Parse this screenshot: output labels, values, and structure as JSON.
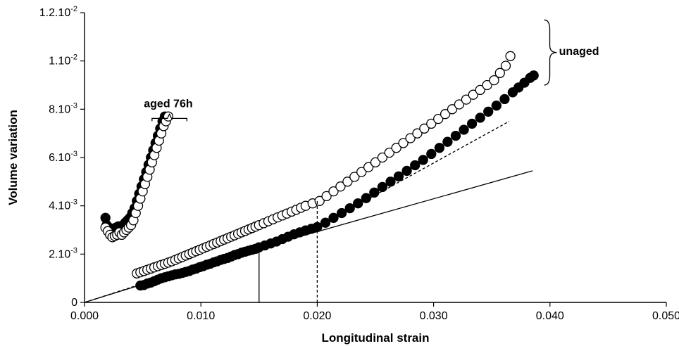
{
  "chart_data": {
    "type": "scatter",
    "xlabel": "Longitudinal strain",
    "ylabel": "Volume variation",
    "xlim": [
      0,
      0.05
    ],
    "ylim": [
      0,
      0.012
    ],
    "grid": false,
    "x_ticks": [
      {
        "value": 0.0,
        "label": "0.000"
      },
      {
        "value": 0.01,
        "label": "0.010"
      },
      {
        "value": 0.02,
        "label": "0.020"
      },
      {
        "value": 0.03,
        "label": "0.030"
      },
      {
        "value": 0.04,
        "label": "0.040"
      },
      {
        "value": 0.05,
        "label": "0.050"
      }
    ],
    "y_ticks": [
      {
        "value": 0,
        "base": "0",
        "exp": ""
      },
      {
        "value": 0.002,
        "base": "2.10",
        "exp": "-3"
      },
      {
        "value": 0.004,
        "base": "4.10",
        "exp": "-3"
      },
      {
        "value": 0.006,
        "base": "6.10",
        "exp": "-3"
      },
      {
        "value": 0.008,
        "base": "8.10",
        "exp": "-3"
      },
      {
        "value": 0.01,
        "base": "1.10",
        "exp": "-2"
      },
      {
        "value": 0.012,
        "base": "1.2.10",
        "exp": "-2"
      }
    ],
    "annotations": [
      {
        "text": "aged 76h",
        "x": 0.0072,
        "y": 0.00808
      },
      {
        "text": "unaged",
        "x": 0.0425,
        "y": 0.01025
      }
    ],
    "series": [
      {
        "marker": "filled-circle",
        "x": [
          0.0048,
          0.0051,
          0.0054,
          0.0057,
          0.006,
          0.0063,
          0.0066,
          0.0069,
          0.0072,
          0.0075,
          0.0078,
          0.0081,
          0.0084,
          0.0087,
          0.009,
          0.0093,
          0.0096,
          0.0099,
          0.0102,
          0.0105,
          0.0108,
          0.0111,
          0.0114,
          0.0117,
          0.012,
          0.0123,
          0.0126,
          0.0129,
          0.0132,
          0.0135,
          0.0138,
          0.0141,
          0.0144,
          0.0147,
          0.015,
          0.0155,
          0.016,
          0.0165,
          0.017,
          0.0175,
          0.018,
          0.0185,
          0.019,
          0.0195,
          0.02,
          0.0207,
          0.0214,
          0.0221,
          0.0228,
          0.0235,
          0.0242,
          0.0249,
          0.0256,
          0.0263,
          0.027,
          0.0277,
          0.0284,
          0.0291,
          0.0298,
          0.0305,
          0.0312,
          0.0319,
          0.0326,
          0.0333,
          0.034,
          0.0347,
          0.0354,
          0.0361,
          0.0368,
          0.0373,
          0.0378,
          0.0383,
          0.0386
        ],
        "y": [
          0.0007,
          0.00072,
          0.00078,
          0.00082,
          0.00088,
          0.00094,
          0.001,
          0.00104,
          0.00108,
          0.00112,
          0.00116,
          0.00118,
          0.00122,
          0.00126,
          0.0013,
          0.00136,
          0.0014,
          0.00146,
          0.0015,
          0.00156,
          0.0016,
          0.00166,
          0.0017,
          0.00176,
          0.0018,
          0.00184,
          0.0019,
          0.00196,
          0.002,
          0.00206,
          0.0021,
          0.00214,
          0.00218,
          0.00222,
          0.00228,
          0.00236,
          0.00244,
          0.00252,
          0.00262,
          0.00272,
          0.00282,
          0.0029,
          0.00298,
          0.00305,
          0.00312,
          0.0033,
          0.0035,
          0.0037,
          0.0039,
          0.0041,
          0.00432,
          0.00455,
          0.00478,
          0.005,
          0.00522,
          0.00545,
          0.00568,
          0.0059,
          0.00615,
          0.0064,
          0.00665,
          0.0069,
          0.00715,
          0.0074,
          0.00765,
          0.0079,
          0.00815,
          0.00842,
          0.0087,
          0.0089,
          0.0091,
          0.0093,
          0.0094
        ]
      },
      {
        "marker": "open-circle",
        "x": [
          0.0045,
          0.0048,
          0.0051,
          0.0054,
          0.0057,
          0.006,
          0.0063,
          0.0066,
          0.0069,
          0.0072,
          0.0075,
          0.0078,
          0.0081,
          0.0084,
          0.0087,
          0.009,
          0.0093,
          0.0096,
          0.0099,
          0.0102,
          0.0105,
          0.0108,
          0.0111,
          0.0114,
          0.0117,
          0.012,
          0.0123,
          0.0126,
          0.0129,
          0.0132,
          0.0135,
          0.0138,
          0.0141,
          0.0144,
          0.0147,
          0.015,
          0.0154,
          0.0158,
          0.0162,
          0.0166,
          0.017,
          0.0174,
          0.0178,
          0.0182,
          0.0186,
          0.019,
          0.0196,
          0.0202,
          0.0208,
          0.0214,
          0.022,
          0.0226,
          0.0232,
          0.0238,
          0.0244,
          0.025,
          0.0256,
          0.0262,
          0.0268,
          0.0274,
          0.028,
          0.0286,
          0.0292,
          0.0298,
          0.0304,
          0.031,
          0.0316,
          0.0322,
          0.0328,
          0.0334,
          0.034,
          0.0346,
          0.0352,
          0.0357,
          0.0362,
          0.0366
        ],
        "y": [
          0.0012,
          0.00125,
          0.0013,
          0.00135,
          0.0014,
          0.00145,
          0.0015,
          0.00155,
          0.0016,
          0.00165,
          0.0017,
          0.00176,
          0.00182,
          0.00188,
          0.00194,
          0.002,
          0.00206,
          0.00212,
          0.00218,
          0.00224,
          0.0023,
          0.00236,
          0.00242,
          0.00248,
          0.00254,
          0.0026,
          0.00266,
          0.00272,
          0.00278,
          0.00284,
          0.0029,
          0.00296,
          0.00302,
          0.00308,
          0.00314,
          0.0032,
          0.00328,
          0.00336,
          0.00344,
          0.00352,
          0.0036,
          0.00368,
          0.00376,
          0.00384,
          0.00392,
          0.004,
          0.0041,
          0.0042,
          0.0044,
          0.0046,
          0.0048,
          0.005,
          0.0052,
          0.0054,
          0.0056,
          0.0058,
          0.006,
          0.0062,
          0.0064,
          0.0066,
          0.0068,
          0.007,
          0.0072,
          0.0074,
          0.0076,
          0.0078,
          0.008,
          0.0082,
          0.0084,
          0.0086,
          0.0088,
          0.009,
          0.0092,
          0.0095,
          0.0098,
          0.0102
        ]
      },
      {
        "marker": "filled-circle",
        "x": [
          0.0018,
          0.0019,
          0.0021,
          0.0023,
          0.0025,
          0.0027,
          0.0029,
          0.0031,
          0.0033,
          0.0035,
          0.0037,
          0.0039,
          0.0041,
          0.0043,
          0.0045,
          0.0047,
          0.0049,
          0.0051,
          0.0053,
          0.0055,
          0.0057,
          0.0059,
          0.0061,
          0.0063,
          0.0065,
          0.0067,
          0.0069
        ],
        "y": [
          0.0035,
          0.0032,
          0.0031,
          0.003,
          0.00305,
          0.0031,
          0.00315,
          0.0031,
          0.0032,
          0.0033,
          0.0034,
          0.0035,
          0.0037,
          0.0039,
          0.0042,
          0.0045,
          0.0048,
          0.0051,
          0.0054,
          0.0057,
          0.006,
          0.0063,
          0.0066,
          0.0069,
          0.0072,
          0.0075,
          0.0077
        ]
      },
      {
        "marker": "open-circle",
        "x": [
          0.0018,
          0.002,
          0.0022,
          0.0024,
          0.0026,
          0.0028,
          0.003,
          0.0032,
          0.0034,
          0.0036,
          0.0038,
          0.004,
          0.0042,
          0.0044,
          0.0046,
          0.0048,
          0.005,
          0.0052,
          0.0054,
          0.0056,
          0.0058,
          0.006,
          0.0062,
          0.0064,
          0.0066,
          0.0068,
          0.007,
          0.0072
        ],
        "y": [
          0.0031,
          0.00295,
          0.0028,
          0.0027,
          0.00275,
          0.0028,
          0.0029,
          0.0028,
          0.0029,
          0.003,
          0.0031,
          0.0032,
          0.0034,
          0.0037,
          0.004,
          0.0043,
          0.0046,
          0.0049,
          0.0052,
          0.0055,
          0.0058,
          0.0061,
          0.0064,
          0.0067,
          0.007,
          0.0073,
          0.0075,
          0.0077
        ]
      }
    ],
    "lines": [
      {
        "style": "solid",
        "points": [
          [
            0.0,
            0.0
          ],
          [
            0.015,
            0.00225
          ],
          [
            0.0385,
            0.00545
          ]
        ]
      },
      {
        "style": "dashed",
        "points": [
          [
            0.0,
            0.0
          ],
          [
            0.02,
            0.00312
          ],
          [
            0.0365,
            0.0075
          ]
        ]
      },
      {
        "style": "solid",
        "points": [
          [
            0.015,
            0.0
          ],
          [
            0.015,
            0.00225
          ]
        ]
      },
      {
        "style": "dashed",
        "points": [
          [
            0.02,
            0.0
          ],
          [
            0.02,
            0.0042
          ]
        ]
      }
    ]
  }
}
